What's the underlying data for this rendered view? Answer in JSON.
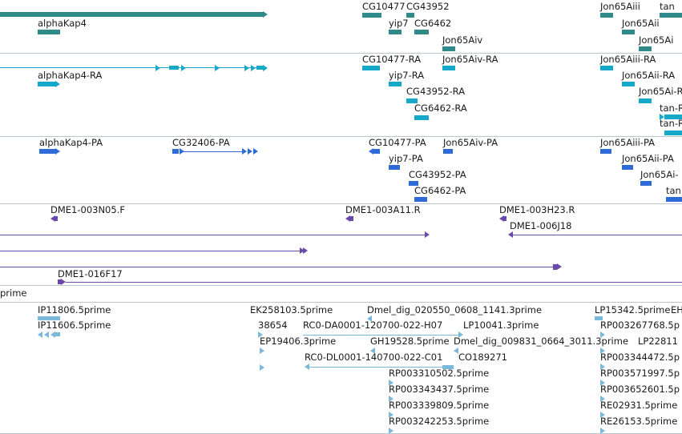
{
  "colors": {
    "gene": "#318a8a",
    "transcript": "#15a8c8",
    "protein": "#2e6bd6",
    "clone": "#6a4aa8",
    "est": "#7ab8dc",
    "divider": "#b9c7cf"
  },
  "tracks": {
    "genes": [
      {
        "label": "alphaKap4"
      },
      {
        "label": "CG10477"
      },
      {
        "label": "CG43952"
      },
      {
        "label": "yip7"
      },
      {
        "label": "CG6462"
      },
      {
        "label": "Jon65Aiv"
      },
      {
        "label": "Jon65Aiii"
      },
      {
        "label": "tan"
      },
      {
        "label": "Jon65Aii"
      },
      {
        "label": "Jon65Ai"
      }
    ],
    "transcripts": [
      {
        "label": "alphaKap4-RA"
      },
      {
        "label": "CG10477-RA"
      },
      {
        "label": "Jon65Aiv-RA"
      },
      {
        "label": "Jon65Aiii-RA"
      },
      {
        "label": "yip7-RA"
      },
      {
        "label": "Jon65Aii-RA"
      },
      {
        "label": "CG43952-RA"
      },
      {
        "label": "Jon65Ai-R"
      },
      {
        "label": "CG6462-RA"
      },
      {
        "label": "tan-R"
      },
      {
        "label": "tan-R"
      }
    ],
    "proteins": [
      {
        "label": "alphaKap4-PA"
      },
      {
        "label": "CG32406-PA"
      },
      {
        "label": "CG10477-PA"
      },
      {
        "label": "Jon65Aiv-PA"
      },
      {
        "label": "Jon65Aiii-PA"
      },
      {
        "label": "yip7-PA"
      },
      {
        "label": "Jon65Aii-PA"
      },
      {
        "label": "CG43952-PA"
      },
      {
        "label": "Jon65Ai-"
      },
      {
        "label": "CG6462-PA"
      },
      {
        "label": "tan"
      }
    ],
    "clones": [
      {
        "label": "DME1-003N05.F"
      },
      {
        "label": "DME1-003A11.R"
      },
      {
        "label": "DME1-003H23.R"
      },
      {
        "label": "DME1-006J18"
      },
      {
        "label": "DME1-016F17"
      }
    ],
    "est_header": "prime",
    "ests": [
      {
        "label": "IP11806.5prime"
      },
      {
        "label": "IP11606.5prime"
      },
      {
        "label": "EK258103.5prime"
      },
      {
        "label": "38654"
      },
      {
        "label": "EP19406.3prime"
      },
      {
        "label": "Dmel_dig_020550_0608_1141.3prime"
      },
      {
        "label": "RC0-DA0001-120700-022-H07"
      },
      {
        "label": "LP10041.3prime"
      },
      {
        "label": "GH19528.5prime"
      },
      {
        "label": "Dmel_dig_009831_0664_3011.3prime"
      },
      {
        "label": "RC0-DL0001-140700-022-C01"
      },
      {
        "label": "CO189271"
      },
      {
        "label": "RP003310502.5prime"
      },
      {
        "label": "RP003343437.5prime"
      },
      {
        "label": "RP003339809.5prime"
      },
      {
        "label": "RP003242253.5prime"
      },
      {
        "label": "LP15342.5prime"
      },
      {
        "label": "EH"
      },
      {
        "label": "RP003267768.5p"
      },
      {
        "label": "LP22811"
      },
      {
        "label": "RP003344472.5p"
      },
      {
        "label": "RP003571997.5p"
      },
      {
        "label": "RP003652601.5p"
      },
      {
        "label": "RE02931.5prime"
      },
      {
        "label": "RE26153.5prime"
      }
    ]
  }
}
